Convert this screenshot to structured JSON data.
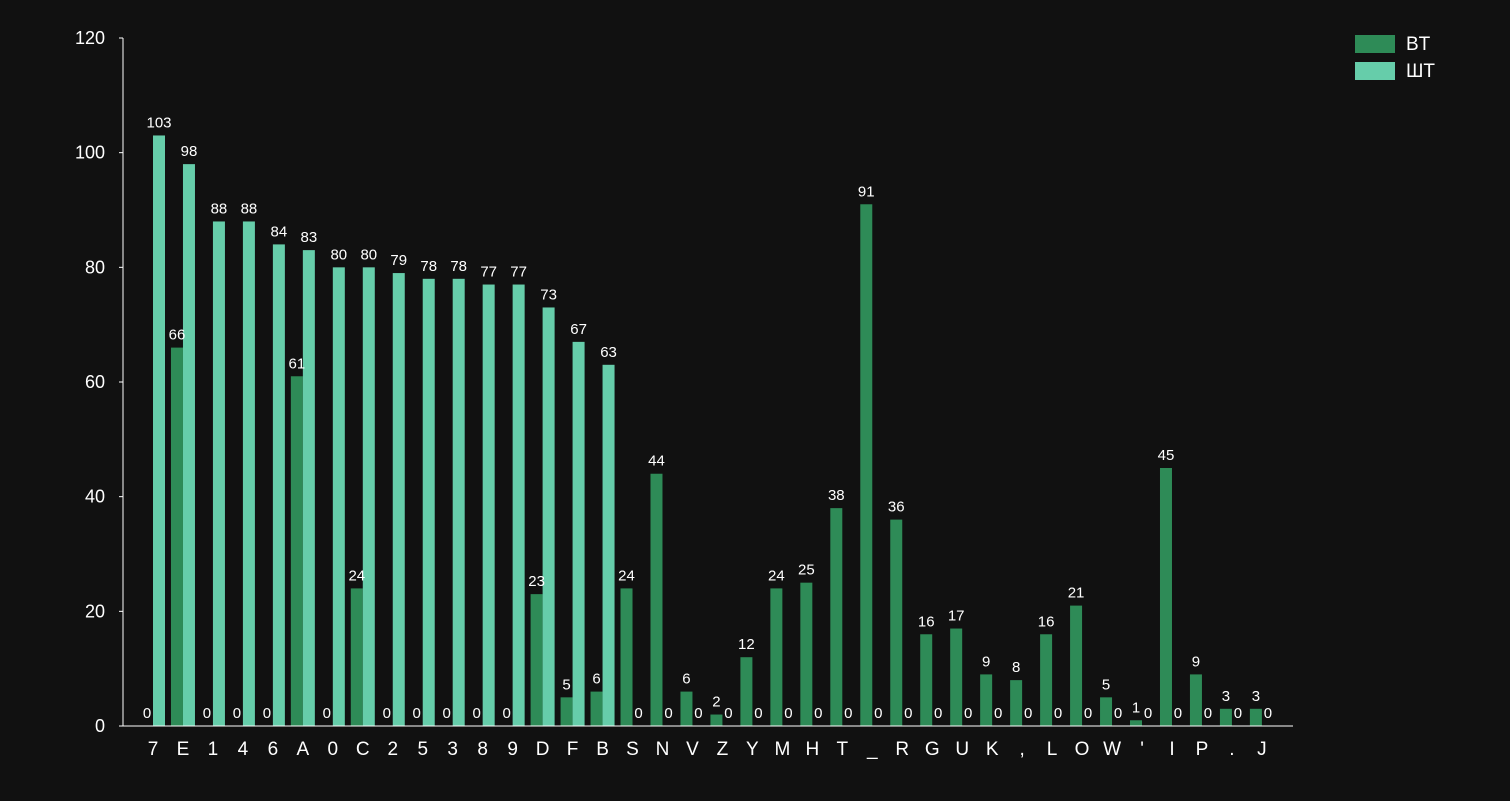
{
  "chart_data": {
    "type": "bar",
    "categories": [
      "7",
      "E",
      "1",
      "4",
      "6",
      "A",
      "0",
      "C",
      "2",
      "5",
      "3",
      "8",
      "9",
      "D",
      "F",
      "B",
      "S",
      "N",
      "V",
      "Z",
      "Y",
      "M",
      "H",
      "T",
      "_",
      "R",
      "G",
      "U",
      "K",
      ",",
      "L",
      "O",
      "W",
      "'",
      "I",
      "P",
      ".",
      "J"
    ],
    "series": [
      {
        "name": "BT",
        "color": "#2e8b57",
        "values": [
          0,
          66,
          0,
          0,
          0,
          61,
          0,
          24,
          0,
          0,
          0,
          0,
          0,
          23,
          5,
          6,
          24,
          44,
          6,
          2,
          12,
          24,
          25,
          38,
          91,
          36,
          16,
          17,
          9,
          8,
          16,
          21,
          5,
          1,
          45,
          9,
          3,
          3
        ]
      },
      {
        "name": "ШТ",
        "color": "#66cdaa",
        "values": [
          103,
          98,
          88,
          88,
          84,
          83,
          80,
          80,
          79,
          78,
          78,
          77,
          77,
          73,
          67,
          63,
          0,
          0,
          0,
          0,
          0,
          0,
          0,
          0,
          0,
          0,
          0,
          0,
          0,
          0,
          0,
          0,
          0,
          0,
          0,
          0,
          0,
          0
        ]
      }
    ],
    "ylim": [
      0,
      120
    ],
    "yticks": [
      0,
      20,
      40,
      60,
      80,
      100,
      120
    ],
    "grid": false,
    "legend_position": "top-right",
    "title": "",
    "xlabel": "",
    "ylabel": ""
  }
}
